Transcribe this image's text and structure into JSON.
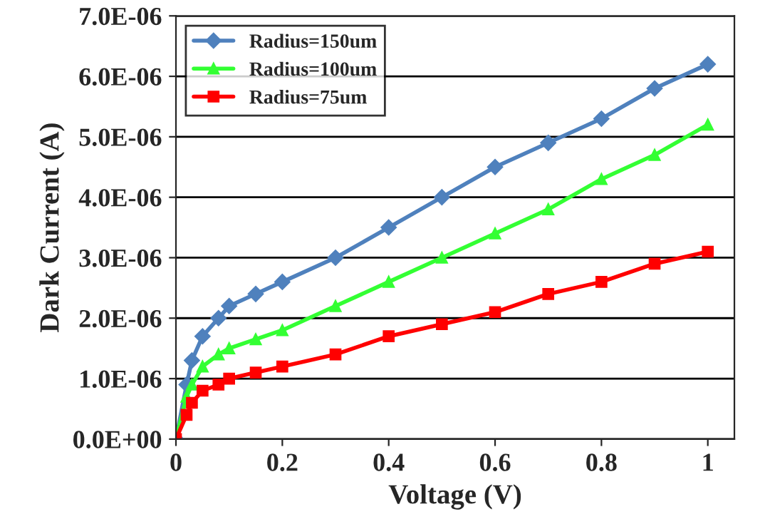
{
  "chart_data": {
    "type": "line",
    "xlabel": "Voltage (V)",
    "ylabel": "Dark Current (A)",
    "x": [
      0,
      0.02,
      0.03,
      0.05,
      0.08,
      0.1,
      0.15,
      0.2,
      0.3,
      0.4,
      0.5,
      0.6,
      0.7,
      0.8,
      0.9,
      1.0
    ],
    "series": [
      {
        "name": "Radius=150um",
        "color": "#4f81bd",
        "values": [
          0,
          9e-07,
          1.3e-06,
          1.7e-06,
          2e-06,
          2.2e-06,
          2.4e-06,
          2.6e-06,
          3e-06,
          3.5e-06,
          4e-06,
          4.5e-06,
          4.9e-06,
          5.3e-06,
          5.8e-06,
          6.2e-06
        ]
      },
      {
        "name": "Radius=100um",
        "color": "#33ff33",
        "marker": "triangle",
        "values": [
          0,
          7e-07,
          9e-07,
          1.2e-06,
          1.4e-06,
          1.5e-06,
          1.65e-06,
          1.8e-06,
          2.2e-06,
          2.6e-06,
          3e-06,
          3.4e-06,
          3.8e-06,
          4.3e-06,
          4.7e-06,
          5.2e-06
        ]
      },
      {
        "name": "Radius=75um",
        "color": "#ff0000",
        "marker": "square",
        "values": [
          0,
          4e-07,
          6e-07,
          8e-07,
          9e-07,
          1e-06,
          1.1e-06,
          1.2e-06,
          1.4e-06,
          1.7e-06,
          1.9e-06,
          2.1e-06,
          2.4e-06,
          2.6e-06,
          2.9e-06,
          3.1e-06
        ]
      }
    ],
    "xlim": [
      0,
      1.05
    ],
    "xticks": [
      0,
      0.2,
      0.4,
      0.6,
      0.8,
      1
    ],
    "ylim": [
      0,
      7e-06
    ],
    "yticks": [
      {
        "value": 0,
        "label": "0.0E+00"
      },
      {
        "value": 1e-06,
        "label": "1.0E-06"
      },
      {
        "value": 2e-06,
        "label": "2.0E-06"
      },
      {
        "value": 3e-06,
        "label": "3.0E-06"
      },
      {
        "value": 4e-06,
        "label": "4.0E-06"
      },
      {
        "value": 5e-06,
        "label": "5.0E-06"
      },
      {
        "value": 6e-06,
        "label": "6.0E-06"
      },
      {
        "value": 7e-06,
        "label": "7.0E-06"
      }
    ],
    "grid": "y",
    "legend": "top left",
    "marker": "diamond",
    "line_style": "solid"
  }
}
